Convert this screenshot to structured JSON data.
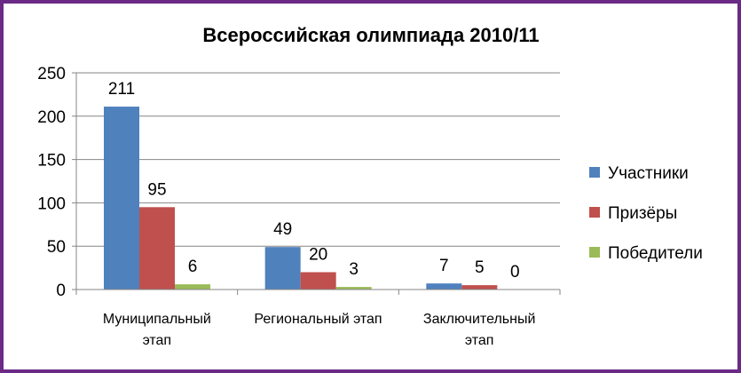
{
  "chart_data": {
    "type": "bar",
    "title": "Всероссийская олимпиада 2010/11",
    "xlabel": "",
    "ylabel": "",
    "ylim": [
      0,
      250
    ],
    "yticks": [
      0,
      50,
      100,
      150,
      200,
      250
    ],
    "grid": true,
    "legend_position": "right",
    "categories": [
      [
        "Муниципальный",
        "этап"
      ],
      [
        "Региональный этап"
      ],
      [
        "Заключительный",
        "этап"
      ]
    ],
    "series": [
      {
        "name": "Участники",
        "values": [
          211,
          49,
          7
        ],
        "color": "#4f81bd"
      },
      {
        "name": "Призёры",
        "values": [
          95,
          20,
          5
        ],
        "color": "#c0504d"
      },
      {
        "name": "Победители",
        "values": [
          6,
          3,
          0
        ],
        "color": "#9bbb59"
      }
    ]
  }
}
